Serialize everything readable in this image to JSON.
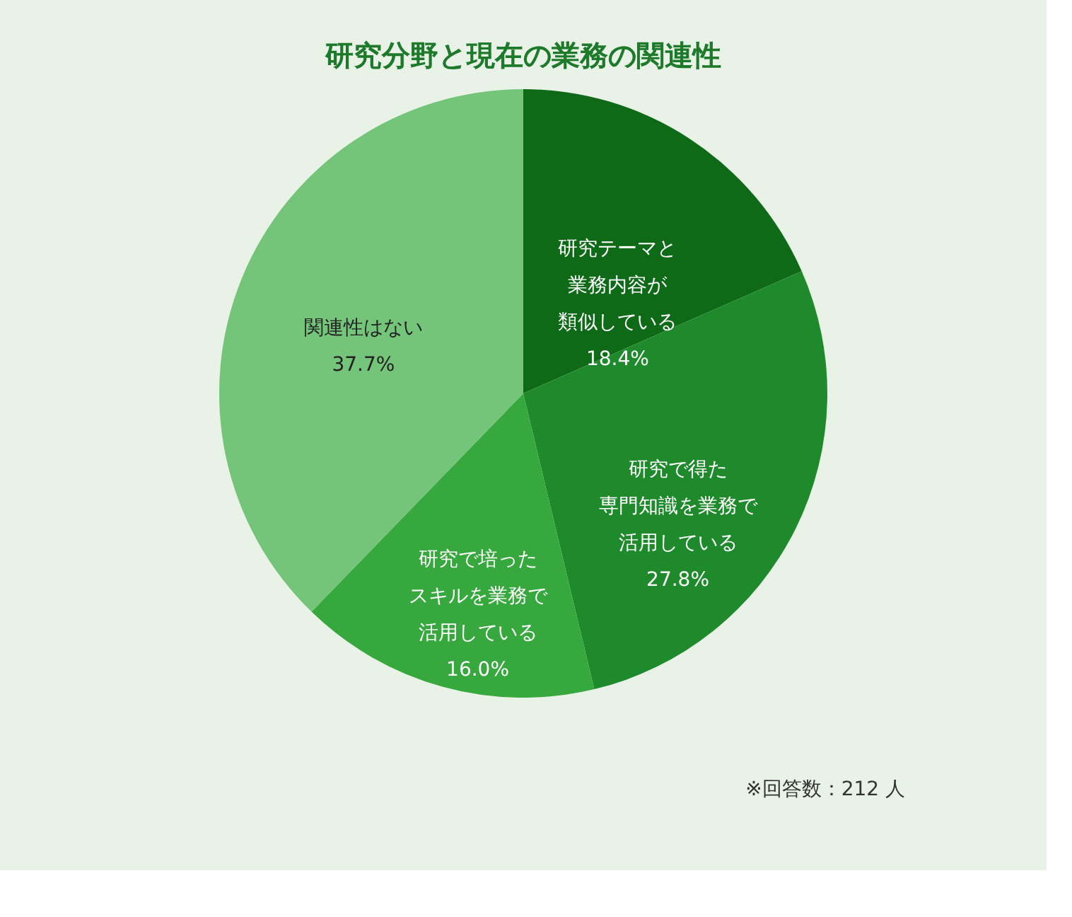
{
  "chart_data": {
    "type": "pie",
    "title": "研究分野と現在の業務の関連性",
    "categories": [
      "研究テーマと業務内容が類似している",
      "研究で得た専門知識を業務で活用している",
      "研究で培ったスキルを業務で活用している",
      "関連性はない"
    ],
    "values": [
      18.4,
      27.8,
      16.0,
      37.7
    ],
    "value_labels": [
      "18.4%",
      "27.8%",
      "16.0%",
      "37.7%"
    ],
    "colors": [
      "#0e6a17",
      "#1f8a2b",
      "#36a83e",
      "#74c47a"
    ],
    "annotations": [
      "※回答数：212 人"
    ]
  }
}
